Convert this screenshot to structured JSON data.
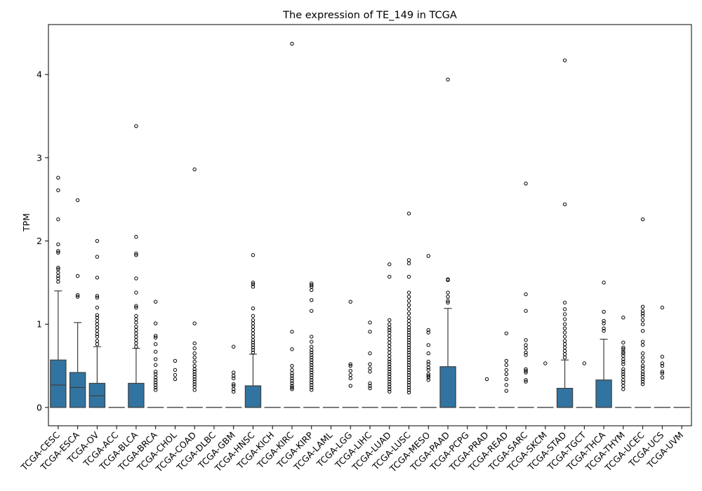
{
  "chart_data": {
    "type": "box",
    "title": "The expression of TE_149 in TCGA",
    "xlabel": "",
    "ylabel": "TPM",
    "ylim": [
      -0.22,
      4.6
    ],
    "yticks": [
      0,
      1,
      2,
      3,
      4
    ],
    "box_color": "#3274a1",
    "categories": [
      "TCGA-CESC",
      "TCGA-ESCA",
      "TCGA-OV",
      "TCGA-ACC",
      "TCGA-BLCA",
      "TCGA-BRCA",
      "TCGA-CHOL",
      "TCGA-COAD",
      "TCGA-DLBC",
      "TCGA-GBM",
      "TCGA-HNSC",
      "TCGA-KICH",
      "TCGA-KIRC",
      "TCGA-KIRP",
      "TCGA-LAML",
      "TCGA-LGG",
      "TCGA-LIHC",
      "TCGA-LUAD",
      "TCGA-LUSC",
      "TCGA-MESO",
      "TCGA-PAAD",
      "TCGA-PCPG",
      "TCGA-PRAD",
      "TCGA-READ",
      "TCGA-SARC",
      "TCGA-SKCM",
      "TCGA-STAD",
      "TCGA-TGCT",
      "TCGA-THCA",
      "TCGA-THYM",
      "TCGA-UCEC",
      "TCGA-UCS",
      "TCGA-UVM"
    ],
    "boxes": [
      {
        "q1": 0,
        "median": 0.27,
        "q3": 0.57,
        "whisker_low": 0,
        "whisker_high": 1.4,
        "outliers": [
          1.51,
          1.55,
          1.58,
          1.62,
          1.66,
          1.68,
          1.86,
          1.88,
          1.96,
          2.26,
          2.61,
          2.76
        ]
      },
      {
        "q1": 0,
        "median": 0.24,
        "q3": 0.42,
        "whisker_low": 0,
        "whisker_high": 1.02,
        "outliers": [
          1.33,
          1.35,
          1.58,
          2.49
        ]
      },
      {
        "q1": 0,
        "median": 0.14,
        "q3": 0.29,
        "whisker_low": 0,
        "whisker_high": 0.73,
        "outliers": [
          0.76,
          0.8,
          0.85,
          0.88,
          0.92,
          0.96,
          1.0,
          1.04,
          1.08,
          1.11,
          1.2,
          1.32,
          1.34,
          1.56,
          1.81,
          2.0
        ]
      },
      {
        "q1": 0,
        "median": 0,
        "q3": 0,
        "whisker_low": 0,
        "whisker_high": 0,
        "outliers": []
      },
      {
        "q1": 0,
        "median": 0,
        "q3": 0.29,
        "whisker_low": 0,
        "whisker_high": 0.71,
        "outliers": [
          0.73,
          0.77,
          0.81,
          0.85,
          0.89,
          0.93,
          0.97,
          1.02,
          1.06,
          1.1,
          1.2,
          1.22,
          1.38,
          1.55,
          1.83,
          1.85,
          2.05,
          3.38
        ]
      },
      {
        "q1": 0,
        "median": 0,
        "q3": 0,
        "whisker_low": 0,
        "whisker_high": 0,
        "outliers": [
          0.21,
          0.24,
          0.27,
          0.3,
          0.33,
          0.36,
          0.4,
          0.43,
          0.51,
          0.58,
          0.67,
          0.76,
          0.84,
          0.86,
          1.01,
          1.27
        ]
      },
      {
        "q1": 0,
        "median": 0,
        "q3": 0,
        "whisker_low": 0,
        "whisker_high": 0,
        "outliers": [
          0.34,
          0.39,
          0.45,
          0.56
        ]
      },
      {
        "q1": 0,
        "median": 0,
        "q3": 0,
        "whisker_low": 0,
        "whisker_high": 0,
        "outliers": [
          0.21,
          0.25,
          0.28,
          0.31,
          0.34,
          0.37,
          0.4,
          0.43,
          0.46,
          0.5,
          0.55,
          0.6,
          0.65,
          0.71,
          0.77,
          1.01,
          2.86
        ]
      },
      {
        "q1": 0,
        "median": 0,
        "q3": 0,
        "whisker_low": 0,
        "whisker_high": 0,
        "outliers": []
      },
      {
        "q1": 0,
        "median": 0,
        "q3": 0,
        "whisker_low": 0,
        "whisker_high": 0,
        "outliers": [
          0.19,
          0.22,
          0.26,
          0.28,
          0.35,
          0.38,
          0.42,
          0.73
        ]
      },
      {
        "q1": 0,
        "median": 0,
        "q3": 0.26,
        "whisker_low": 0,
        "whisker_high": 0.64,
        "outliers": [
          0.66,
          0.69,
          0.72,
          0.75,
          0.78,
          0.81,
          0.85,
          0.89,
          0.93,
          0.97,
          1.01,
          1.05,
          1.1,
          1.19,
          1.45,
          1.48,
          1.5,
          1.83
        ]
      },
      {
        "q1": 0,
        "median": 0,
        "q3": 0,
        "whisker_low": 0,
        "whisker_high": 0,
        "outliers": []
      },
      {
        "q1": 0,
        "median": 0,
        "q3": 0,
        "whisker_low": 0,
        "whisker_high": 0,
        "outliers": [
          0.22,
          0.24,
          0.26,
          0.29,
          0.32,
          0.35,
          0.38,
          0.41,
          0.45,
          0.5,
          0.7,
          0.91,
          4.37
        ]
      },
      {
        "q1": 0,
        "median": 0,
        "q3": 0,
        "whisker_low": 0,
        "whisker_high": 0,
        "outliers": [
          0.21,
          0.24,
          0.27,
          0.3,
          0.33,
          0.36,
          0.39,
          0.42,
          0.45,
          0.48,
          0.51,
          0.54,
          0.57,
          0.6,
          0.63,
          0.66,
          0.69,
          0.73,
          0.79,
          0.85,
          1.16,
          1.29,
          1.41,
          1.45,
          1.47,
          1.49
        ]
      },
      {
        "q1": 0,
        "median": 0,
        "q3": 0,
        "whisker_low": 0,
        "whisker_high": 0,
        "outliers": []
      },
      {
        "q1": 0,
        "median": 0,
        "q3": 0,
        "whisker_low": 0,
        "whisker_high": 0,
        "outliers": [
          0.26,
          0.35,
          0.39,
          0.44,
          0.5,
          0.52,
          1.27
        ]
      },
      {
        "q1": 0,
        "median": 0,
        "q3": 0,
        "whisker_low": 0,
        "whisker_high": 0,
        "outliers": [
          0.23,
          0.26,
          0.29,
          0.43,
          0.47,
          0.52,
          0.65,
          0.91,
          1.02
        ]
      },
      {
        "q1": 0,
        "median": 0,
        "q3": 0,
        "whisker_low": 0,
        "whisker_high": 0,
        "outliers": [
          0.19,
          0.22,
          0.25,
          0.28,
          0.31,
          0.34,
          0.37,
          0.4,
          0.43,
          0.46,
          0.49,
          0.52,
          0.55,
          0.58,
          0.62,
          0.66,
          0.7,
          0.74,
          0.78,
          0.82,
          0.86,
          0.9,
          0.93,
          0.96,
          1.0,
          1.05,
          1.57,
          1.72
        ]
      },
      {
        "q1": 0,
        "median": 0,
        "q3": 0,
        "whisker_low": 0,
        "whisker_high": 0,
        "outliers": [
          0.18,
          0.21,
          0.24,
          0.27,
          0.3,
          0.33,
          0.36,
          0.39,
          0.42,
          0.45,
          0.48,
          0.51,
          0.54,
          0.57,
          0.6,
          0.63,
          0.66,
          0.69,
          0.72,
          0.75,
          0.78,
          0.81,
          0.84,
          0.87,
          0.9,
          0.93,
          0.96,
          1.0,
          1.04,
          1.08,
          1.13,
          1.18,
          1.23,
          1.28,
          1.33,
          1.38,
          1.57,
          1.73,
          1.77,
          2.33
        ]
      },
      {
        "q1": 0,
        "median": 0,
        "q3": 0,
        "whisker_low": 0,
        "whisker_high": 0,
        "outliers": [
          0.33,
          0.36,
          0.38,
          0.4,
          0.45,
          0.48,
          0.52,
          0.55,
          0.65,
          0.75,
          0.9,
          0.93,
          1.82
        ]
      },
      {
        "q1": 0,
        "median": 0,
        "q3": 0.49,
        "whisker_low": 0,
        "whisker_high": 1.19,
        "outliers": [
          1.26,
          1.28,
          1.33,
          1.38,
          1.53,
          1.54,
          3.94
        ]
      },
      {
        "q1": 0,
        "median": 0,
        "q3": 0,
        "whisker_low": 0,
        "whisker_high": 0,
        "outliers": []
      },
      {
        "q1": 0,
        "median": 0,
        "q3": 0,
        "whisker_low": 0,
        "whisker_high": 0,
        "outliers": [
          0.34
        ]
      },
      {
        "q1": 0,
        "median": 0,
        "q3": 0,
        "whisker_low": 0,
        "whisker_high": 0,
        "outliers": [
          0.2,
          0.27,
          0.34,
          0.4,
          0.45,
          0.51,
          0.56,
          0.89
        ]
      },
      {
        "q1": 0,
        "median": 0,
        "q3": 0,
        "whisker_low": 0,
        "whisker_high": 0,
        "outliers": [
          0.31,
          0.33,
          0.42,
          0.44,
          0.46,
          0.63,
          0.66,
          0.71,
          0.75,
          0.81,
          1.16,
          1.36,
          2.69
        ]
      },
      {
        "q1": 0,
        "median": 0,
        "q3": 0,
        "whisker_low": 0,
        "whisker_high": 0,
        "outliers": [
          0.53
        ]
      },
      {
        "q1": 0,
        "median": 0,
        "q3": 0.23,
        "whisker_low": 0,
        "whisker_high": 0.57,
        "outliers": [
          0.6,
          0.64,
          0.68,
          0.72,
          0.76,
          0.8,
          0.85,
          0.9,
          0.95,
          1.0,
          1.06,
          1.12,
          1.18,
          1.26,
          2.44,
          4.17
        ]
      },
      {
        "q1": 0,
        "median": 0,
        "q3": 0,
        "whisker_low": 0,
        "whisker_high": 0,
        "outliers": [
          0.53
        ]
      },
      {
        "q1": 0,
        "median": 0,
        "q3": 0.33,
        "whisker_low": 0,
        "whisker_high": 0.82,
        "outliers": [
          0.92,
          0.95,
          1.01,
          1.04,
          1.15,
          1.5
        ]
      },
      {
        "q1": 0,
        "median": 0,
        "q3": 0,
        "whisker_low": 0,
        "whisker_high": 0,
        "outliers": [
          0.22,
          0.26,
          0.3,
          0.33,
          0.37,
          0.4,
          0.43,
          0.46,
          0.52,
          0.55,
          0.58,
          0.62,
          0.65,
          0.67,
          0.7,
          0.72,
          0.78,
          1.08
        ]
      },
      {
        "q1": 0,
        "median": 0,
        "q3": 0,
        "whisker_low": 0,
        "whisker_high": 0,
        "outliers": [
          0.28,
          0.31,
          0.34,
          0.37,
          0.4,
          0.43,
          0.47,
          0.5,
          0.55,
          0.6,
          0.65,
          0.75,
          0.79,
          0.92,
          1.0,
          1.05,
          1.1,
          1.13,
          1.16,
          1.21,
          2.26
        ]
      },
      {
        "q1": 0,
        "median": 0,
        "q3": 0,
        "whisker_low": 0,
        "whisker_high": 0,
        "outliers": [
          0.36,
          0.41,
          0.43,
          0.5,
          0.53,
          0.61,
          1.2
        ]
      },
      {
        "q1": 0,
        "median": 0,
        "q3": 0,
        "whisker_low": 0,
        "whisker_high": 0,
        "outliers": []
      }
    ]
  }
}
